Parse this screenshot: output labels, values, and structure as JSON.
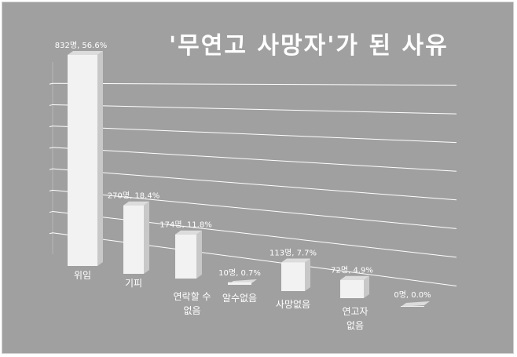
{
  "chart_data": {
    "type": "bar",
    "title": "'무연고 사망자'가 된 사유",
    "categories": [
      [
        "위임"
      ],
      [
        "기피"
      ],
      [
        "연락할 수",
        "없음"
      ],
      [
        "알수없음"
      ],
      [
        "사망없음"
      ],
      [
        "연고자",
        "없음"
      ],
      [
        ""
      ]
    ],
    "values": [
      832,
      270,
      174,
      10,
      113,
      72,
      0
    ],
    "data_labels": [
      "832명, 56.6%",
      "270명, 18.4%",
      "174명, 11.8%",
      "10명, 0.7%",
      "113명, 7.7%",
      "72명, 4.9%",
      "0명, 0.0%"
    ],
    "ylim": [
      0,
      900
    ],
    "grid": true,
    "colors": {
      "background": "#a0a0a0",
      "bar_front": "#f2f2f2",
      "bar_side": "#c8c8c8",
      "bar_top": "#dcdcdc",
      "grid": "#ffffff",
      "text": "#ffffff"
    }
  }
}
